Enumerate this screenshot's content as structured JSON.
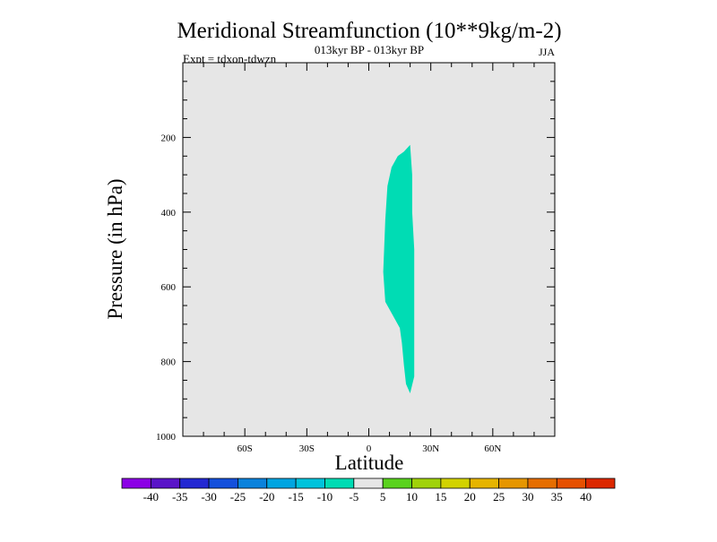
{
  "chart_data": {
    "type": "contour",
    "title": "Meridional Streamfunction (10**9kg/m-2)",
    "subtitle_center": "013kyr BP - 013kyr BP",
    "subtitle_left": "Expt = tdxon-tdwzn",
    "subtitle_right": "JJA",
    "xlabel": "Latitude",
    "ylabel": "Pressure (in hPa)",
    "xlim": [
      -90,
      90
    ],
    "ylim": [
      1000,
      0
    ],
    "x_ticks": [
      -60,
      -30,
      0,
      30,
      60
    ],
    "x_tick_labels": [
      "60S",
      "30S",
      "0",
      "30N",
      "60N"
    ],
    "y_ticks": [
      200,
      400,
      600,
      800,
      1000
    ],
    "y_tick_labels": [
      "200",
      "400",
      "600",
      "800",
      "1000"
    ],
    "background_level_color": "#e6e6e6",
    "filled_regions": [
      {
        "level": "-10 to -5",
        "color": "#00dcb4",
        "polygon": [
          [
            20,
            220
          ],
          [
            17,
            238
          ],
          [
            14,
            250
          ],
          [
            11,
            280
          ],
          [
            9,
            330
          ],
          [
            8,
            420
          ],
          [
            7,
            560
          ],
          [
            8,
            640
          ],
          [
            12,
            680
          ],
          [
            15,
            710
          ],
          [
            16,
            750
          ],
          [
            17,
            810
          ],
          [
            18,
            860
          ],
          [
            20,
            885
          ],
          [
            22,
            840
          ],
          [
            22,
            780
          ],
          [
            22,
            700
          ],
          [
            22,
            600
          ],
          [
            22,
            500
          ],
          [
            21,
            400
          ],
          [
            21,
            300
          ]
        ]
      }
    ],
    "colorbar": {
      "labels": [
        "-40",
        "-35",
        "-30",
        "-25",
        "-20",
        "-15",
        "-10",
        "-5",
        "5",
        "10",
        "15",
        "20",
        "25",
        "30",
        "35",
        "40"
      ],
      "colors": [
        "#8c00e6",
        "#5a14c8",
        "#2328d2",
        "#1450dc",
        "#0a82dc",
        "#00a5e1",
        "#00c3dc",
        "#00dcb4",
        "#e6e6e6",
        "#5ad21e",
        "#a0d20a",
        "#d2d200",
        "#e6b400",
        "#e69600",
        "#e66e00",
        "#e65000",
        "#dc2800"
      ]
    }
  }
}
